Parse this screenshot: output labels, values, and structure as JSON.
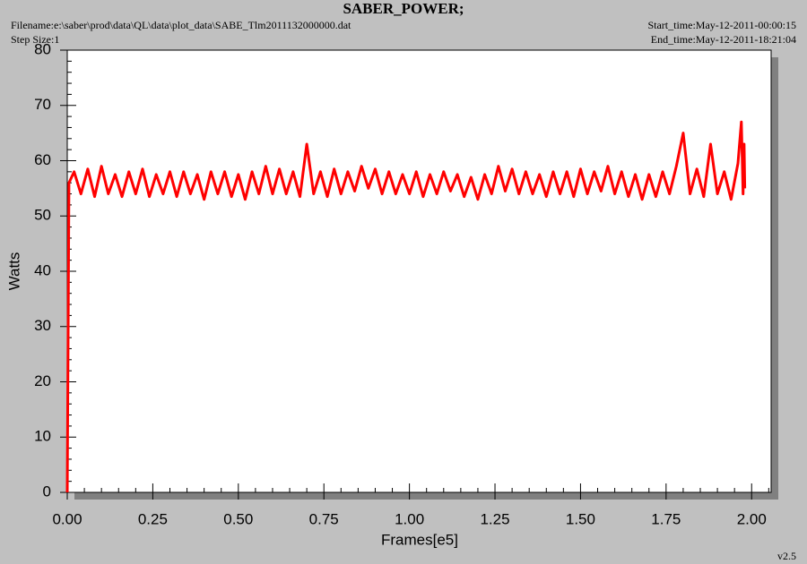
{
  "chart_data": {
    "type": "line",
    "title": "SABER_POWER;",
    "filename": "Filename:e:\\saber\\prod\\data\\QL\\data\\plot_data\\SABE_Tlm2011132000000.dat",
    "step_size": "Step Size:1",
    "start_time": "Start_time:May-12-2011-00:00:15",
    "end_time": "End_time:May-12-2011-18:21:04",
    "version": "v2.5",
    "xlabel": "Frames[e5]",
    "ylabel": "Watts",
    "xlim": [
      0,
      2.057
    ],
    "ylim": [
      0,
      80
    ],
    "xticks": [
      {
        "value": 0,
        "label": "0.00"
      },
      {
        "value": 0.25,
        "label": "0.25"
      },
      {
        "value": 0.5,
        "label": "0.50"
      },
      {
        "value": 0.75,
        "label": "0.75"
      },
      {
        "value": 1,
        "label": "1.00"
      },
      {
        "value": 1.25,
        "label": "1.25"
      },
      {
        "value": 1.5,
        "label": "1.50"
      },
      {
        "value": 1.75,
        "label": "1.75"
      },
      {
        "value": 2,
        "label": "2.00"
      }
    ],
    "xminorticks": [
      0.05,
      0.1,
      0.15,
      0.2,
      0.3,
      0.35,
      0.4,
      0.45,
      0.55,
      0.6,
      0.65,
      0.7,
      0.8,
      0.85,
      0.9,
      0.95,
      1.05,
      1.1,
      1.15,
      1.2,
      1.3,
      1.35,
      1.4,
      1.45,
      1.55,
      1.6,
      1.65,
      1.7,
      1.8,
      1.85,
      1.9,
      1.95,
      2.05
    ],
    "yticks": [
      0,
      10,
      20,
      30,
      40,
      50,
      60,
      70,
      80
    ],
    "yminorticks": [
      2,
      4,
      6,
      8,
      12,
      14,
      16,
      18,
      22,
      24,
      26,
      28,
      32,
      34,
      36,
      38,
      42,
      44,
      46,
      48,
      52,
      54,
      56,
      58,
      62,
      64,
      66,
      68,
      72,
      74,
      76,
      78
    ],
    "grid": false,
    "series": [
      {
        "color": "#ff0000",
        "x": [
          0,
          0.005,
          0.02,
          0.04,
          0.06,
          0.08,
          0.1,
          0.12,
          0.14,
          0.16,
          0.18,
          0.2,
          0.22,
          0.24,
          0.26,
          0.28,
          0.3,
          0.32,
          0.34,
          0.36,
          0.38,
          0.4,
          0.42,
          0.44,
          0.46,
          0.48,
          0.5,
          0.52,
          0.54,
          0.56,
          0.58,
          0.6,
          0.62,
          0.64,
          0.66,
          0.68,
          0.7,
          0.72,
          0.74,
          0.76,
          0.78,
          0.8,
          0.82,
          0.84,
          0.86,
          0.88,
          0.9,
          0.92,
          0.94,
          0.96,
          0.98,
          1,
          1.02,
          1.04,
          1.06,
          1.08,
          1.1,
          1.12,
          1.14,
          1.16,
          1.18,
          1.2,
          1.22,
          1.24,
          1.26,
          1.28,
          1.3,
          1.32,
          1.34,
          1.36,
          1.38,
          1.4,
          1.42,
          1.44,
          1.46,
          1.48,
          1.5,
          1.52,
          1.54,
          1.56,
          1.58,
          1.6,
          1.62,
          1.64,
          1.66,
          1.68,
          1.7,
          1.72,
          1.74,
          1.76,
          1.78,
          1.8,
          1.82,
          1.84,
          1.86,
          1.88,
          1.9,
          1.92,
          1.94,
          1.96,
          1.97,
          1.975,
          1.978,
          1.98
        ],
        "values": [
          0,
          56,
          58,
          54,
          58.5,
          53.5,
          59,
          54,
          57.5,
          53.5,
          58,
          54,
          58.5,
          53.5,
          57.5,
          54,
          58,
          53.5,
          58,
          54,
          57.5,
          53,
          58,
          54,
          58,
          53.5,
          57.5,
          53,
          58,
          54,
          59,
          54,
          58.5,
          54,
          58,
          53.5,
          63,
          54,
          58,
          53.5,
          58.5,
          54,
          58,
          54.5,
          59,
          55,
          58.5,
          54,
          58,
          54,
          57.5,
          54,
          58,
          53.5,
          57.5,
          54,
          58,
          54.5,
          57.5,
          53.5,
          57,
          53,
          57.5,
          54,
          59,
          54.5,
          58.5,
          54,
          58,
          54,
          57.5,
          53.5,
          58,
          54,
          58,
          53.5,
          58.5,
          54,
          58,
          54.5,
          59,
          54,
          58,
          53.5,
          57.5,
          53,
          57.5,
          53.5,
          58,
          54,
          59,
          65,
          54,
          58.5,
          53.5,
          63,
          54,
          58,
          53,
          59.5,
          67,
          54,
          63,
          55
        ]
      }
    ]
  }
}
